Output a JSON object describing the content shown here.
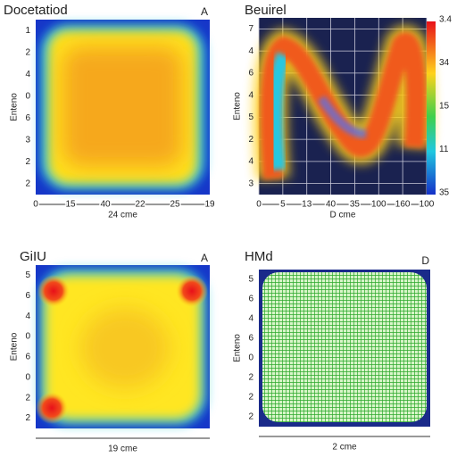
{
  "chart_data": [
    {
      "type": "heatmap",
      "title": "Docetatiod",
      "corner_label": "A",
      "x_label": "24 cme",
      "y_label": "Enteno",
      "categories": [
        0,
        15,
        40,
        22,
        25,
        19
      ],
      "y_categories": [
        1,
        2,
        4,
        0,
        6,
        3,
        2,
        2
      ]
    },
    {
      "type": "heatmap",
      "title": "Beuirel",
      "x_label": "D cme",
      "y_label": "Enteno",
      "categories": [
        0,
        5,
        13,
        40,
        35,
        100,
        160,
        100
      ],
      "y_categories": [
        7,
        4,
        6,
        4,
        5,
        2,
        4,
        3
      ],
      "colorbar_labels": [
        3.4,
        34,
        15,
        11,
        35
      ],
      "grid": true
    },
    {
      "type": "heatmap",
      "title": "GiIU",
      "corner_label": "A",
      "x_label": "19 cme",
      "y_label": "Enteno",
      "y_categories": [
        5,
        6,
        4,
        0,
        6,
        0,
        2,
        2
      ]
    },
    {
      "type": "heatmap",
      "title": "HMd",
      "corner_label": "D",
      "x_label": "2 cme",
      "y_label": "Enteno",
      "y_categories": [
        5,
        6,
        4,
        6,
        0,
        2,
        2,
        2
      ]
    }
  ]
}
